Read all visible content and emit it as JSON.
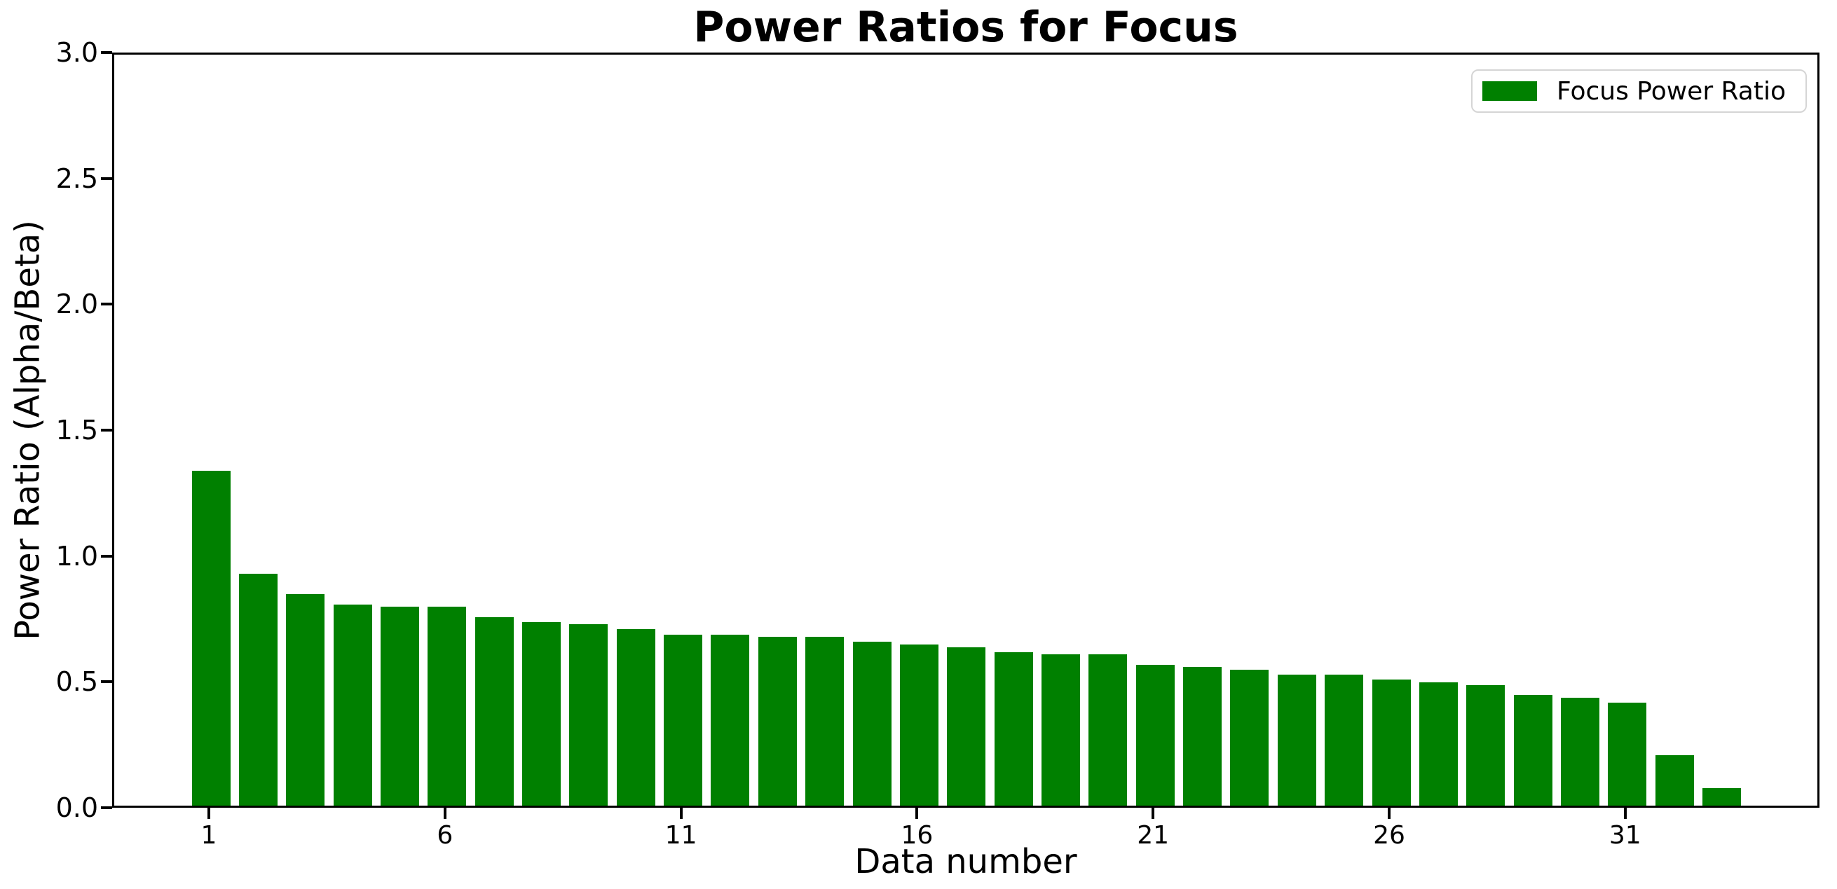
{
  "chart_data": {
    "type": "bar",
    "title": "Power Ratios for Focus",
    "xlabel": "Data number",
    "ylabel": "Power Ratio (Alpha/Beta)",
    "legend": {
      "label": "Focus Power Ratio",
      "position": "upper right",
      "swatch_color": "#008000"
    },
    "bar_color": "#008000",
    "categories": [
      1,
      2,
      3,
      4,
      5,
      6,
      7,
      8,
      9,
      10,
      11,
      12,
      13,
      14,
      15,
      16,
      17,
      18,
      19,
      20,
      21,
      22,
      23,
      24,
      25,
      26,
      27,
      28,
      29,
      30,
      31,
      32,
      33
    ],
    "values": [
      1.33,
      0.92,
      0.84,
      0.8,
      0.79,
      0.79,
      0.75,
      0.73,
      0.72,
      0.7,
      0.68,
      0.68,
      0.67,
      0.67,
      0.65,
      0.64,
      0.63,
      0.61,
      0.6,
      0.6,
      0.56,
      0.55,
      0.54,
      0.52,
      0.52,
      0.5,
      0.49,
      0.48,
      0.44,
      0.43,
      0.41,
      0.2,
      0.07
    ],
    "ylim": [
      0.0,
      3.0
    ],
    "yticks": [
      0.0,
      0.5,
      1.0,
      1.5,
      2.0,
      2.5,
      3.0
    ],
    "ytick_labels": [
      "0.0",
      "0.5",
      "1.0",
      "1.5",
      "2.0",
      "2.5",
      "3.0"
    ],
    "xticks": [
      1,
      6,
      11,
      16,
      21,
      26,
      31
    ],
    "xtick_labels": [
      "1",
      "6",
      "11",
      "16",
      "21",
      "26",
      "31"
    ],
    "grid": false
  }
}
